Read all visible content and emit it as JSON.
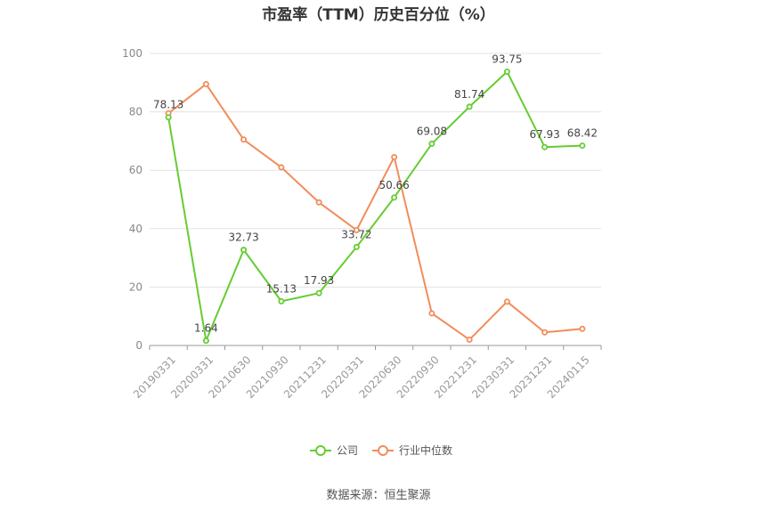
{
  "chart_data": {
    "type": "line",
    "title": "市盈率（TTM）历史百分位（%）",
    "xlabel": "",
    "ylabel": "",
    "ylim": [
      0,
      100
    ],
    "yticks": [
      0,
      20,
      40,
      60,
      80,
      100
    ],
    "categories": [
      "20190331",
      "20200331",
      "20210630",
      "20210930",
      "20211231",
      "20220331",
      "20220630",
      "20220930",
      "20221231",
      "20230331",
      "20231231",
      "20240115"
    ],
    "series": [
      {
        "name": "公司",
        "color": "#66cc33",
        "values": [
          78.13,
          1.64,
          32.73,
          15.13,
          17.93,
          33.72,
          50.66,
          69.08,
          81.74,
          93.75,
          67.93,
          68.42
        ],
        "labels": [
          "78.13",
          "1.64",
          "32.73",
          "15.13",
          "17.93",
          "33.72",
          "50.66",
          "69.08",
          "81.74",
          "93.75",
          "67.93",
          "68.42"
        ]
      },
      {
        "name": "行业中位数",
        "color": "#f28c5c",
        "values": [
          79.5,
          89.5,
          70.5,
          61.0,
          49.0,
          39.5,
          64.5,
          11.0,
          2.0,
          15.0,
          4.5,
          5.7
        ]
      }
    ],
    "legend_position": "bottom",
    "grid": true
  },
  "source": "数据来源：恒生聚源"
}
